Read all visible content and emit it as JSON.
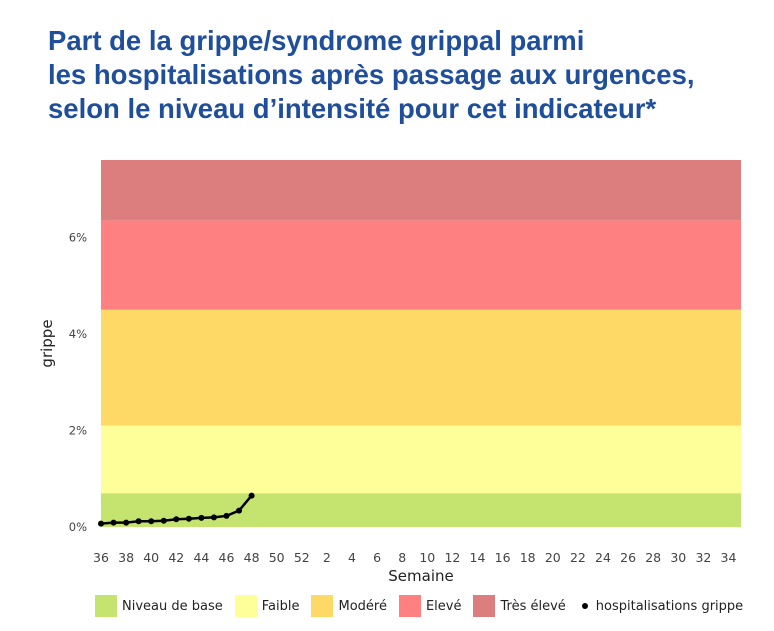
{
  "title_lines": [
    "Part de la grippe/syndrome grippal parmi",
    "les hospitalisations après passage aux urgences,",
    "selon le niveau d’intensité pour cet indicateur*"
  ],
  "chart_data": {
    "type": "line",
    "xlabel": "Semaine",
    "ylabel": "grippe",
    "x_ticks": [
      "36",
      "38",
      "40",
      "42",
      "44",
      "46",
      "48",
      "50",
      "52",
      "2",
      "4",
      "6",
      "8",
      "10",
      "12",
      "14",
      "16",
      "18",
      "20",
      "22",
      "24",
      "26",
      "28",
      "30",
      "32",
      "34"
    ],
    "y_ticks": [
      "0%",
      "2%",
      "4%",
      "6%"
    ],
    "ylim": [
      0,
      7.6
    ],
    "bands": [
      {
        "name": "Niveau de base",
        "from": 0,
        "to": 0.7,
        "color": "#c5e46f"
      },
      {
        "name": "Faible",
        "from": 0.7,
        "to": 2.1,
        "color": "#ffff99"
      },
      {
        "name": "Modéré",
        "from": 2.1,
        "to": 4.5,
        "color": "#ffd966"
      },
      {
        "name": "Elevé",
        "from": 4.5,
        "to": 6.35,
        "color": "#ff8080"
      },
      {
        "name": "Très élevé",
        "from": 6.35,
        "to": 7.6,
        "color": "#dd7e7e"
      }
    ],
    "series": [
      {
        "name": "hospitalisations grippe",
        "x": [
          "36",
          "37",
          "38",
          "39",
          "40",
          "41",
          "42",
          "43",
          "44",
          "45",
          "46",
          "47",
          "48"
        ],
        "values": [
          0.07,
          0.09,
          0.09,
          0.12,
          0.12,
          0.13,
          0.16,
          0.17,
          0.19,
          0.2,
          0.23,
          0.34,
          0.65
        ],
        "color": "#000000"
      }
    ],
    "legend_position": "bottom"
  }
}
